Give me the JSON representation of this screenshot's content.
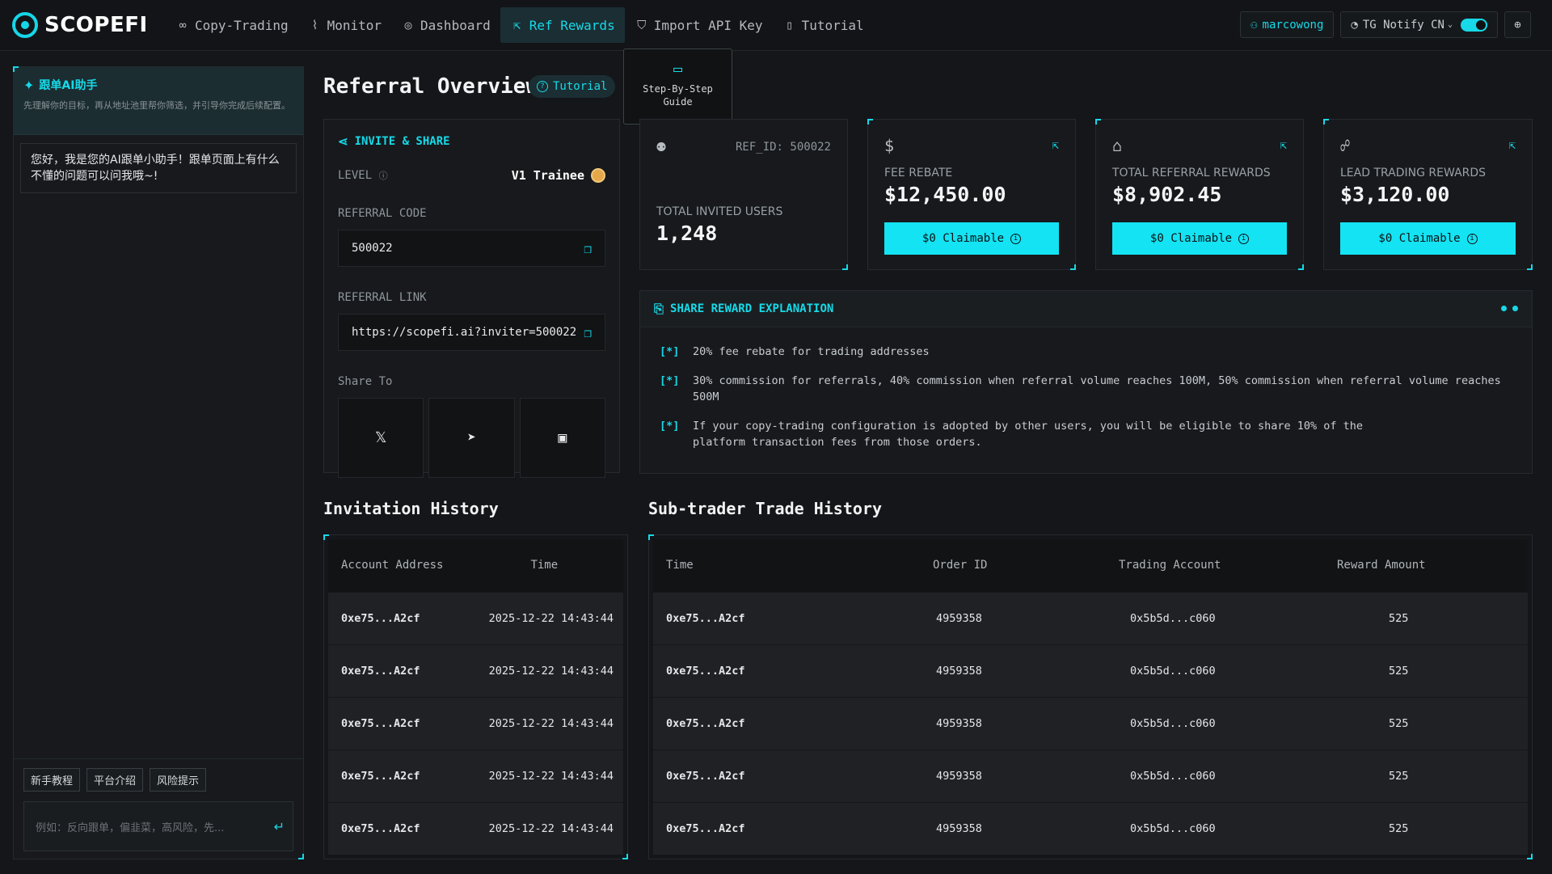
{
  "app": {
    "logo_text": "SCOPEFI"
  },
  "nav": {
    "items": [
      {
        "label": "Copy-Trading",
        "icon": "link-icon",
        "active": false
      },
      {
        "label": "Monitor",
        "icon": "chart-icon",
        "active": false
      },
      {
        "label": "Dashboard",
        "icon": "compass-icon",
        "active": false
      },
      {
        "label": "Ref Rewards",
        "icon": "share-icon",
        "active": true
      },
      {
        "label": "Import API Key",
        "icon": "shield-icon",
        "active": false
      },
      {
        "label": "Tutorial",
        "icon": "book-icon",
        "active": false
      }
    ],
    "username": "marcowong",
    "notify_label": "TG Notify CN",
    "notify_on": true
  },
  "ai_panel": {
    "title": "跟单AI助手",
    "subtitle": "先理解你的目标，再从地址池里帮你筛选，并引导你完成后续配置。",
    "greeting": "您好，我是您的AI跟单小助手！跟单页面上有什么不懂的问题可以问我哦~!",
    "quick_actions": [
      "新手教程",
      "平台介绍",
      "风险提示"
    ],
    "input_placeholder": "例如：反向跟单，偏韭菜，高风险，先..."
  },
  "overview": {
    "title": "Referral Overview",
    "tutorial_label": "Tutorial",
    "tooltip_line1": "Step-By-Step",
    "tooltip_line2": "Guide"
  },
  "invite": {
    "heading": "INVITE & SHARE",
    "level_label": "LEVEL",
    "level_value": "V1 Trainee",
    "code_label": "REFERRAL CODE",
    "code_value": "500022",
    "link_label": "REFERRAL LINK",
    "link_value": "https://scopefi.ai?inviter=500022",
    "share_label": "Share To",
    "share_targets": [
      "x-icon",
      "telegram-icon",
      "image-icon"
    ]
  },
  "stats": {
    "ref_id": "REF_ID: 500022",
    "invited_label": "TOTAL INVITED USERS",
    "invited_value": "1,248",
    "cards": [
      {
        "label": "FEE REBATE",
        "value": "$12,450.00",
        "claim": "$0 Claimable"
      },
      {
        "label": "TOTAL REFERRAL REWARDS",
        "value": "$8,902.45",
        "claim": "$0 Claimable"
      },
      {
        "label": "LEAD TRADING REWARDS",
        "value": "$3,120.00",
        "claim": "$0 Claimable"
      }
    ]
  },
  "explanation": {
    "heading": "SHARE REWARD EXPLANATION",
    "bullet": "[*]",
    "rules": [
      "20% fee rebate for trading addresses",
      "30% commission for referrals, 40% commission when referral volume reaches 100M, 50% commission when referral volume reaches 500M",
      "If your copy-trading configuration is adopted by other users, you will be eligible to share 10% of the platform transaction fees from those orders."
    ]
  },
  "invitation_history": {
    "title": "Invitation History",
    "columns": [
      "Account Address",
      "Time"
    ],
    "rows": [
      [
        "0xe75...A2cf",
        "2025-12-22 14:43:44"
      ],
      [
        "0xe75...A2cf",
        "2025-12-22 14:43:44"
      ],
      [
        "0xe75...A2cf",
        "2025-12-22 14:43:44"
      ],
      [
        "0xe75...A2cf",
        "2025-12-22 14:43:44"
      ],
      [
        "0xe75...A2cf",
        "2025-12-22 14:43:44"
      ]
    ]
  },
  "trade_history": {
    "title": "Sub-trader Trade History",
    "columns": [
      "Time",
      "Order ID",
      "Trading Account",
      "Reward Amount"
    ],
    "rows": [
      [
        "0xe75...A2cf",
        "4959358",
        "0x5b5d...c060",
        "525"
      ],
      [
        "0xe75...A2cf",
        "4959358",
        "0x5b5d...c060",
        "525"
      ],
      [
        "0xe75...A2cf",
        "4959358",
        "0x5b5d...c060",
        "525"
      ],
      [
        "0xe75...A2cf",
        "4959358",
        "0x5b5d...c060",
        "525"
      ],
      [
        "0xe75...A2cf",
        "4959358",
        "0x5b5d...c060",
        "525"
      ]
    ]
  },
  "colors": {
    "accent": "#17d9e8",
    "background": "#141619",
    "panel": "#17191c"
  }
}
